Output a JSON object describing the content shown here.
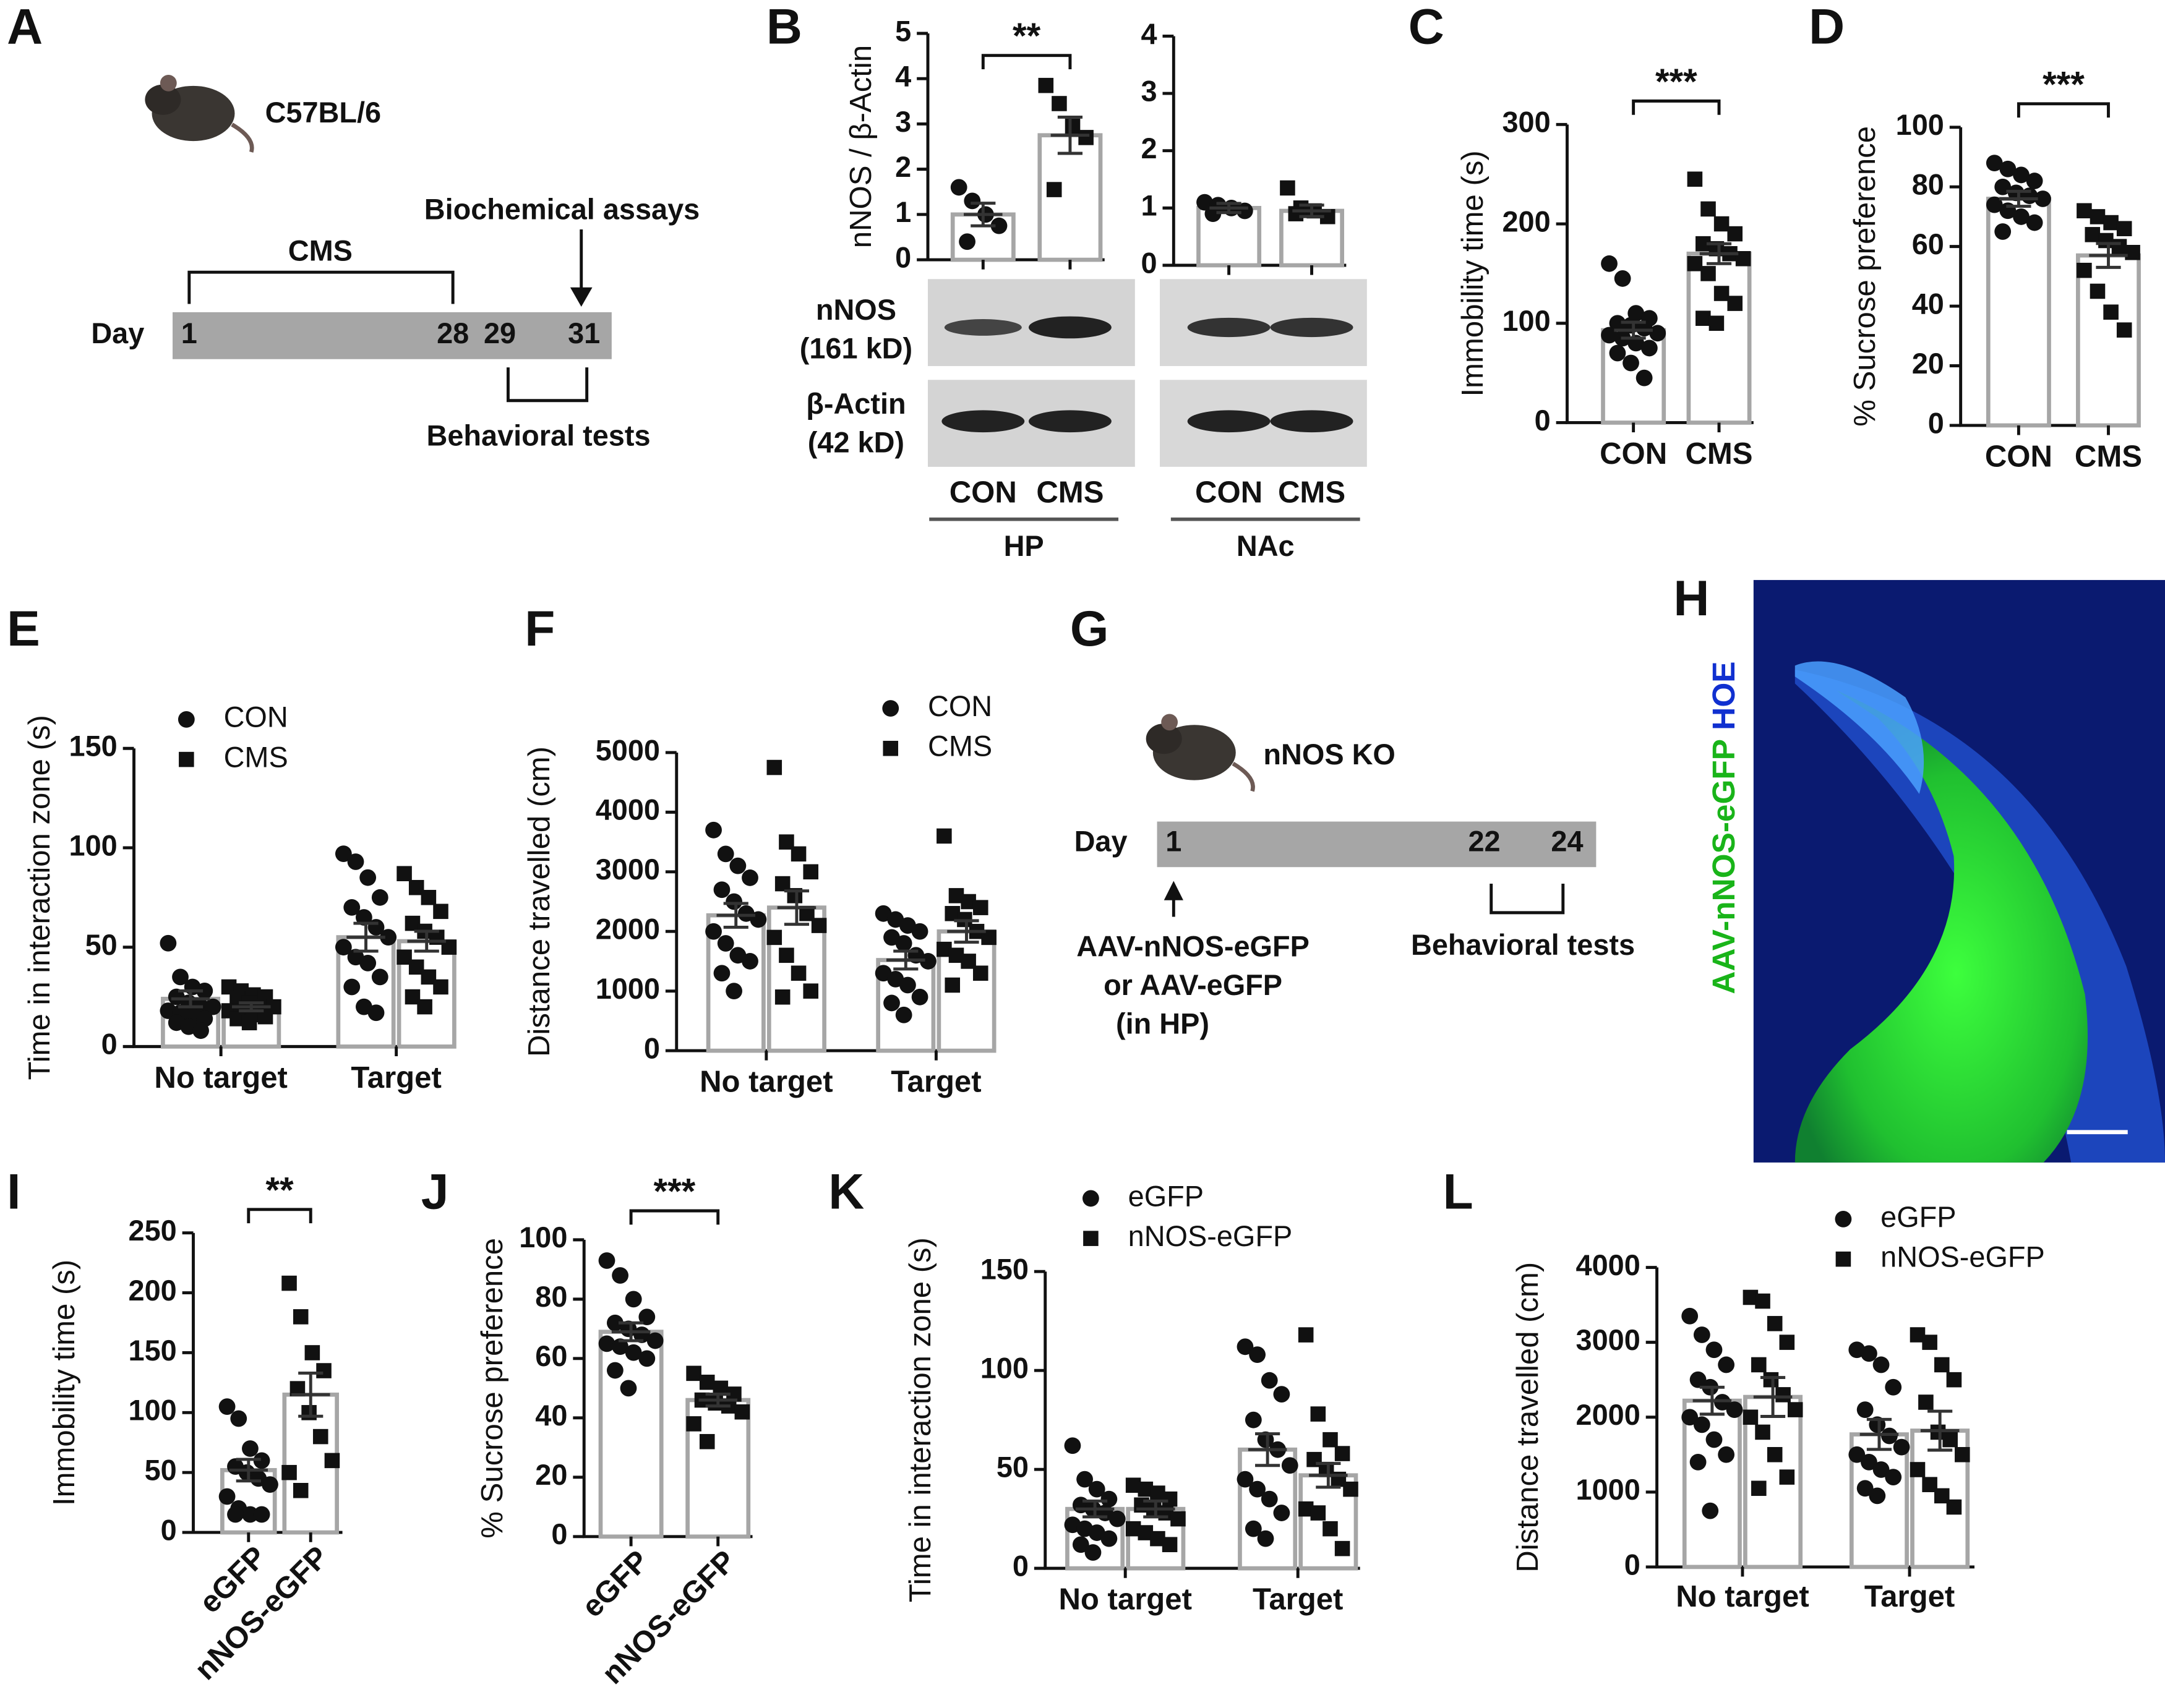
{
  "panel_a": {
    "letter": "A",
    "strain": "C57BL/6",
    "stress": "CMS",
    "assay": "Biochemical assays",
    "day": "Day",
    "days": [
      "1",
      "28",
      "29",
      "31"
    ],
    "behavior": "Behavioral tests"
  },
  "blot": {
    "rows": [
      {
        "protein": "nNOS",
        "size": "(161 kD)"
      },
      {
        "protein": "β-Actin",
        "size": "(42 kD)"
      }
    ]
  },
  "panel_g": {
    "letter": "G",
    "strain": "nNOS KO",
    "day": "Day",
    "days": [
      "1",
      "22",
      "24"
    ],
    "injection": [
      "AAV-nNOS-eGFP",
      "or AAV-eGFP",
      "(in HP)"
    ],
    "behavior": "Behavioral tests"
  },
  "panel_h": {
    "letter": "H",
    "label_green": "AAV-nNOS-eGFP",
    "label_blue": "HOE"
  },
  "chart_data": [
    {
      "type": "bar",
      "panel": "B",
      "ylabel": "nNOS / β-Actin",
      "group": "HP",
      "categories": [
        "CON",
        "CMS"
      ],
      "series": [
        {
          "markers": [
            "circle",
            "square"
          ],
          "values": [
            1.0,
            2.75
          ],
          "errors": [
            0.25,
            0.4
          ],
          "points": [
            [
              1.6,
              1.3,
              1.0,
              0.75,
              0.4
            ],
            [
              3.85,
              3.45,
              2.95,
              2.7,
              1.55
            ]
          ]
        }
      ],
      "ylim": [
        0,
        5
      ],
      "yticks": [
        0,
        1,
        2,
        3,
        4,
        5
      ],
      "significance": "**"
    },
    {
      "type": "bar",
      "group": "NAc",
      "categories": [
        "CON",
        "CMS"
      ],
      "series": [
        {
          "markers": [
            "circle",
            "square"
          ],
          "values": [
            1.0,
            0.95
          ],
          "errors": [
            0.08,
            0.1
          ],
          "points": [
            [
              1.1,
              1.05,
              1.0,
              0.95,
              0.9
            ],
            [
              1.35,
              1.0,
              0.95,
              0.85,
              0.9
            ]
          ]
        }
      ],
      "ylim": [
        0,
        4
      ],
      "yticks": [
        0,
        1,
        2,
        3,
        4
      ]
    },
    {
      "type": "bar",
      "panel": "C",
      "ylabel": "Immobility time (s)",
      "categories": [
        "CON",
        "CMS"
      ],
      "series": [
        {
          "markers": [
            "circle",
            "square"
          ],
          "values": [
            93,
            170
          ],
          "errors": [
            8,
            10
          ],
          "points": [
            [
              160,
              145,
              110,
              105,
              100,
              98,
              95,
              90,
              88,
              85,
              80,
              75,
              70,
              60,
              45
            ],
            [
              245,
              215,
              200,
              190,
              180,
              175,
              170,
              165,
              160,
              150,
              130,
              120,
              105,
              100
            ]
          ]
        }
      ],
      "ylim": [
        0,
        300
      ],
      "yticks": [
        0,
        100,
        200,
        300
      ],
      "significance": "***"
    },
    {
      "type": "bar",
      "panel": "D",
      "ylabel": "% Sucrose preference",
      "categories": [
        "CON",
        "CMS"
      ],
      "series": [
        {
          "markers": [
            "circle",
            "square"
          ],
          "values": [
            76,
            57
          ],
          "errors": [
            2.5,
            4
          ],
          "points": [
            [
              88,
              86,
              84,
              82,
              80,
              78,
              77,
              76,
              74,
              72,
              70,
              68,
              65
            ],
            [
              72,
              70,
              68,
              66,
              64,
              62,
              60,
              58,
              52,
              45,
              38,
              32
            ]
          ]
        }
      ],
      "ylim": [
        0,
        100
      ],
      "yticks": [
        0,
        20,
        40,
        60,
        80,
        100
      ],
      "significance": "***"
    },
    {
      "type": "bar",
      "panel": "E",
      "ylabel": "Time in interaction zone (s)",
      "categories": [
        "No target",
        "Target"
      ],
      "series": [
        {
          "name": "CON",
          "marker": "circle",
          "values": [
            24,
            55
          ],
          "errors": [
            4,
            7
          ],
          "points": [
            [
              52,
              35,
              30,
              28,
              25,
              22,
              20,
              20,
              18,
              17,
              15,
              14,
              12,
              10,
              8
            ],
            [
              97,
              93,
              85,
              75,
              70,
              65,
              60,
              55,
              50,
              45,
              42,
              35,
              30,
              20,
              17
            ]
          ]
        },
        {
          "name": "CMS",
          "marker": "square",
          "values": [
            20,
            53
          ],
          "errors": [
            2,
            5
          ],
          "points": [
            [
              30,
              28,
              26,
              25,
              24,
              22,
              20,
              20,
              18,
              18,
              16,
              15,
              14,
              12
            ],
            [
              87,
              80,
              75,
              68,
              62,
              58,
              55,
              50,
              45,
              40,
              35,
              30,
              25,
              20
            ]
          ]
        }
      ],
      "ylim": [
        0,
        150
      ],
      "yticks": [
        0,
        50,
        100,
        150
      ],
      "legend": true
    },
    {
      "type": "bar",
      "panel": "F",
      "ylabel": "Distance travelled (cm)",
      "categories": [
        "No target",
        "Target"
      ],
      "series": [
        {
          "name": "CON",
          "marker": "circle",
          "values": [
            2270,
            1520
          ],
          "errors": [
            200,
            150
          ],
          "points": [
            [
              3700,
              3300,
              3100,
              2900,
              2700,
              2500,
              2300,
              2200,
              2000,
              1800,
              1600,
              1500,
              1300,
              1000
            ],
            [
              2300,
              2200,
              2100,
              2000,
              1900,
              1800,
              1600,
              1500,
              1300,
              1200,
              1100,
              900,
              800,
              600
            ]
          ]
        },
        {
          "name": "CMS",
          "marker": "square",
          "values": [
            2400,
            2000
          ],
          "errors": [
            280,
            180
          ],
          "points": [
            [
              4750,
              3500,
              3300,
              3000,
              2800,
              2600,
              2300,
              2100,
              1900,
              1600,
              1300,
              1000,
              900
            ],
            [
              3600,
              2600,
              2500,
              2400,
              2300,
              2200,
              2000,
              1900,
              1700,
              1600,
              1500,
              1300,
              1100
            ]
          ]
        }
      ],
      "ylim": [
        0,
        5000
      ],
      "yticks": [
        0,
        1000,
        2000,
        3000,
        4000,
        5000
      ],
      "legend": true
    },
    {
      "type": "bar",
      "panel": "I",
      "ylabel": "Immobility time (s)",
      "categories": [
        "eGFP",
        "nNOS-eGFP"
      ],
      "series": [
        {
          "markers": [
            "circle",
            "square"
          ],
          "values": [
            52,
            115
          ],
          "errors": [
            9,
            18
          ],
          "points": [
            [
              105,
              95,
              70,
              60,
              55,
              50,
              45,
              40,
              30,
              20,
              15,
              15,
              15
            ],
            [
              208,
              180,
              150,
              135,
              120,
              100,
              80,
              60,
              50,
              35
            ]
          ]
        }
      ],
      "ylim": [
        0,
        250
      ],
      "yticks": [
        0,
        50,
        100,
        150,
        200,
        250
      ],
      "significance": "**"
    },
    {
      "type": "bar",
      "panel": "J",
      "ylabel": "% Sucrose preference",
      "categories": [
        "eGFP",
        "nNOS-eGFP"
      ],
      "series": [
        {
          "markers": [
            "circle",
            "square"
          ],
          "values": [
            69,
            46
          ],
          "errors": [
            3,
            2
          ],
          "points": [
            [
              93,
              88,
              80,
              74,
              72,
              70,
              68,
              66,
              65,
              64,
              62,
              60,
              56,
              50
            ],
            [
              55,
              52,
              50,
              48,
              46,
              45,
              44,
              42,
              38,
              32
            ]
          ]
        }
      ],
      "ylim": [
        0,
        100
      ],
      "yticks": [
        0,
        20,
        40,
        60,
        80,
        100
      ],
      "significance": "***"
    },
    {
      "type": "bar",
      "panel": "K",
      "ylabel": "Time in interaction zone (s)",
      "categories": [
        "No target",
        "Target"
      ],
      "series": [
        {
          "name": "eGFP",
          "marker": "circle",
          "values": [
            30,
            60
          ],
          "errors": [
            4,
            8
          ],
          "points": [
            [
              62,
              45,
              40,
              35,
              32,
              30,
              28,
              25,
              22,
              20,
              18,
              15,
              12,
              8
            ],
            [
              112,
              108,
              95,
              88,
              75,
              65,
              60,
              52,
              45,
              40,
              35,
              28,
              20,
              15
            ]
          ]
        },
        {
          "name": "nNOS-eGFP",
          "marker": "square",
          "values": [
            30,
            47
          ],
          "errors": [
            4,
            6
          ],
          "points": [
            [
              42,
              40,
              38,
              35,
              32,
              30,
              28,
              25,
              20,
              18,
              15,
              12
            ],
            [
              118,
              78,
              65,
              58,
              55,
              50,
              45,
              40,
              30,
              28,
              20,
              10
            ]
          ]
        }
      ],
      "ylim": [
        0,
        150
      ],
      "yticks": [
        0,
        50,
        100,
        150
      ],
      "legend": true
    },
    {
      "type": "bar",
      "panel": "L",
      "ylabel": "Distance travelled (cm)",
      "categories": [
        "No target",
        "Target"
      ],
      "series": [
        {
          "name": "eGFP",
          "marker": "circle",
          "values": [
            2220,
            1770
          ],
          "errors": [
            180,
            200
          ],
          "points": [
            [
              3350,
              3100,
              2900,
              2700,
              2500,
              2400,
              2200,
              2100,
              2000,
              1900,
              1700,
              1500,
              1400,
              750
            ],
            [
              2900,
              2850,
              2700,
              2400,
              2100,
              1900,
              1750,
              1600,
              1500,
              1400,
              1300,
              1200,
              1050,
              950
            ]
          ]
        },
        {
          "name": "nNOS-eGFP",
          "marker": "square",
          "values": [
            2270,
            1820
          ],
          "errors": [
            260,
            260
          ],
          "points": [
            [
              3600,
              3550,
              3250,
              3000,
              2700,
              2500,
              2300,
              2100,
              2000,
              1800,
              1500,
              1200,
              1050
            ],
            [
              3100,
              3000,
              2700,
              2500,
              2200,
              1800,
              1700,
              1500,
              1300,
              1100,
              950,
              800
            ]
          ]
        }
      ],
      "ylim": [
        0,
        4000
      ],
      "yticks": [
        0,
        1000,
        2000,
        3000,
        4000
      ],
      "legend": true
    }
  ]
}
